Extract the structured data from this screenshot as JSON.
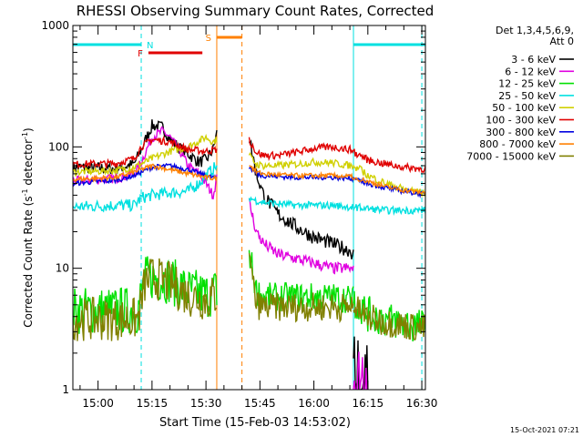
{
  "chart_data": {
    "type": "line",
    "title": "RHESSI Observing Summary Count Rates, Corrected",
    "xlabel": "Start Time (15-Feb-03 14:53:02)",
    "ylabel": "Corrected Count Rate (s⁻¹ detector⁻¹)",
    "ylabel_main": "Corrected Count Rate (s",
    "ylabel_sup1": "-1",
    "ylabel_mid": " detector",
    "ylabel_sup2": "-1",
    "ylabel_end": ")",
    "y_scale": "log",
    "ylim": [
      1,
      1000
    ],
    "xlim": [
      "14:53",
      "16:31"
    ],
    "x_ticks": [
      "15:00",
      "15:15",
      "15:30",
      "15:45",
      "16:00",
      "16:15",
      "16:30"
    ],
    "y_ticks": [
      "1",
      "10",
      "100",
      "1000"
    ],
    "grid": false,
    "legend": {
      "position": "right",
      "header": [
        "Det 1,3,4,5,6,9,",
        "Att 0"
      ],
      "entries": [
        {
          "name": "3 - 6 keV",
          "color": "#000000"
        },
        {
          "name": "6 - 12 keV",
          "color": "#e000e0"
        },
        {
          "name": "12 - 25 keV",
          "color": "#00e000"
        },
        {
          "name": "25 - 50 keV",
          "color": "#00e0e0"
        },
        {
          "name": "50 - 100 keV",
          "color": "#d0d000"
        },
        {
          "name": "100 - 300 keV",
          "color": "#e00000"
        },
        {
          "name": "300 - 800 keV",
          "color": "#0000e0"
        },
        {
          "name": "800 - 7000 keV",
          "color": "#ff8000"
        },
        {
          "name": "7000 - 15000 keV",
          "color": "#808000"
        }
      ]
    },
    "annotations": [
      {
        "label": "N",
        "color": "#00e0e0",
        "segments": [
          [
            "14:53",
            "15:12"
          ],
          [
            "16:11",
            "16:31"
          ]
        ]
      },
      {
        "label": "F",
        "color": "#e00000",
        "segments": [
          [
            "15:14",
            "15:29"
          ]
        ]
      },
      {
        "label": "S",
        "color": "#ff8000",
        "segments": [
          [
            "15:33",
            "15:40"
          ]
        ]
      }
    ],
    "vertical_markers": [
      {
        "time": "15:12",
        "color": "#00e0e0",
        "style": "dashed"
      },
      {
        "time": "16:11",
        "color": "#00e0e0",
        "style": "solid"
      },
      {
        "time": "16:30",
        "color": "#00e0e0",
        "style": "dashed"
      },
      {
        "time": "15:33",
        "color": "#ff8000",
        "style": "solid"
      },
      {
        "time": "15:40",
        "color": "#ff8000",
        "style": "dashed"
      }
    ],
    "series": [
      {
        "name": "3 - 6 keV",
        "color": "#000000",
        "noise": 0.05,
        "x": [
          "14:53",
          "15:00",
          "15:05",
          "15:10",
          "15:12",
          "15:15",
          "15:18",
          "15:20",
          "15:23",
          "15:25",
          "15:28",
          "15:30",
          "15:32",
          "15:33"
        ],
        "values": [
          68,
          67,
          66,
          72,
          95,
          150,
          145,
          115,
          96,
          88,
          75,
          78,
          95,
          130
        ]
      },
      {
        "name": "6 - 12 keV",
        "color": "#e000e0",
        "noise": 0.04,
        "x": [
          "14:53",
          "15:05",
          "15:10",
          "15:12",
          "15:15",
          "15:18",
          "15:20",
          "15:23",
          "15:25",
          "15:28",
          "15:30",
          "15:32",
          "15:33"
        ],
        "values": [
          52,
          55,
          60,
          75,
          120,
          135,
          120,
          90,
          70,
          60,
          50,
          40,
          55
        ]
      },
      {
        "name": "12 - 25 keV",
        "color": "#00e000",
        "noise": 0.2,
        "x": [
          "14:53",
          "15:11",
          "15:12",
          "15:13",
          "15:15",
          "15:20",
          "15:25",
          "15:30",
          "15:33"
        ],
        "values": [
          4.5,
          4.5,
          6,
          8,
          8.5,
          8,
          6.5,
          6,
          6.5
        ]
      },
      {
        "name": "25 - 50 keV",
        "color": "#00e0e0",
        "noise": 0.05,
        "x": [
          "14:53",
          "15:05",
          "15:10",
          "15:12",
          "15:15",
          "15:20",
          "15:25",
          "15:28",
          "15:30",
          "15:33"
        ],
        "values": [
          32,
          33,
          33,
          38,
          40,
          42,
          43,
          50,
          58,
          70
        ]
      },
      {
        "name": "50 - 100 keV",
        "color": "#d0d000",
        "noise": 0.03,
        "x": [
          "14:53",
          "15:05",
          "15:10",
          "15:15",
          "15:20",
          "15:25",
          "15:30",
          "15:32",
          "15:33"
        ],
        "values": [
          62,
          64,
          68,
          80,
          92,
          100,
          120,
          110,
          115
        ]
      },
      {
        "name": "100 - 300 keV",
        "color": "#e00000",
        "noise": 0.03,
        "x": [
          "14:53",
          "15:05",
          "15:10",
          "15:12",
          "15:15",
          "15:20",
          "15:25",
          "15:30",
          "15:33"
        ],
        "values": [
          72,
          73,
          80,
          100,
          115,
          110,
          95,
          92,
          95
        ]
      },
      {
        "name": "300 - 800 keV",
        "color": "#0000e0",
        "noise": 0.02,
        "x": [
          "14:53",
          "15:05",
          "15:10",
          "15:15",
          "15:20",
          "15:25",
          "15:30",
          "15:33"
        ],
        "values": [
          50,
          53,
          58,
          68,
          70,
          65,
          58,
          55
        ]
      },
      {
        "name": "800 - 7000 keV",
        "color": "#ff8000",
        "noise": 0.02,
        "x": [
          "14:53",
          "15:05",
          "15:10",
          "15:15",
          "15:20",
          "15:25",
          "15:30",
          "15:33"
        ],
        "values": [
          54,
          56,
          62,
          70,
          65,
          60,
          56,
          55
        ]
      },
      {
        "name": "7000 - 15000 keV",
        "color": "#808000",
        "noise": 0.18,
        "x": [
          "14:53",
          "15:11",
          "15:12",
          "15:13",
          "15:15",
          "15:20",
          "15:25",
          "15:30",
          "15:33"
        ],
        "values": [
          3.8,
          3.8,
          5,
          7.5,
          8.5,
          7.5,
          6,
          5.5,
          6
        ]
      },
      {
        "name": "3 - 6 keV",
        "color": "#000000",
        "noise": 0.06,
        "x": [
          "15:42",
          "15:44",
          "15:46",
          "15:50",
          "15:55",
          "16:00",
          "16:05",
          "16:10",
          "16:11"
        ],
        "values": [
          120,
          60,
          40,
          28,
          22,
          18,
          16,
          14,
          13
        ]
      },
      {
        "name": "6 - 12 keV",
        "color": "#e000e0",
        "noise": 0.05,
        "x": [
          "15:42",
          "15:44",
          "15:46",
          "15:50",
          "15:55",
          "16:00",
          "16:05",
          "16:10",
          "16:11"
        ],
        "values": [
          35,
          20,
          16,
          13,
          12,
          11,
          10,
          10,
          9.5
        ]
      },
      {
        "name": "12 - 25 keV",
        "color": "#00e000",
        "noise": 0.12,
        "x": [
          "15:42",
          "15:44",
          "15:46",
          "15:50",
          "15:55",
          "16:00",
          "16:05",
          "16:10",
          "16:11"
        ],
        "values": [
          14,
          6.5,
          5.8,
          5.8,
          5.8,
          5.8,
          5.8,
          5.6,
          5.5
        ]
      },
      {
        "name": "25 - 50 keV",
        "color": "#00e0e0",
        "noise": 0.03,
        "x": [
          "15:42",
          "15:44",
          "15:46",
          "15:50",
          "15:55",
          "16:00",
          "16:05",
          "16:10",
          "16:11"
        ],
        "values": [
          38,
          36,
          35,
          34,
          33,
          33,
          33,
          32,
          32
        ]
      },
      {
        "name": "50 - 100 keV",
        "color": "#d0d000",
        "noise": 0.03,
        "x": [
          "15:42",
          "15:44",
          "15:46",
          "15:50",
          "15:55",
          "16:00",
          "16:05",
          "16:10",
          "16:11"
        ],
        "values": [
          85,
          72,
          70,
          70,
          72,
          75,
          74,
          70,
          70
        ]
      },
      {
        "name": "100 - 300 keV",
        "color": "#e00000",
        "noise": 0.03,
        "x": [
          "15:42",
          "15:44",
          "15:46",
          "15:50",
          "15:55",
          "16:00",
          "16:05",
          "16:10",
          "16:11"
        ],
        "values": [
          115,
          90,
          85,
          85,
          90,
          97,
          100,
          95,
          92
        ]
      },
      {
        "name": "300 - 800 keV",
        "color": "#0000e0",
        "noise": 0.02,
        "x": [
          "15:42",
          "15:44",
          "15:46",
          "15:50",
          "15:55",
          "16:00",
          "16:05",
          "16:10",
          "16:11"
        ],
        "values": [
          68,
          60,
          58,
          57,
          56,
          56,
          56,
          55,
          55
        ]
      },
      {
        "name": "800 - 7000 keV",
        "color": "#ff8000",
        "noise": 0.02,
        "x": [
          "15:42",
          "15:44",
          "15:46",
          "15:50",
          "15:55",
          "16:00",
          "16:05",
          "16:10",
          "16:11"
        ],
        "values": [
          72,
          62,
          60,
          59,
          58,
          58,
          58,
          57,
          56
        ]
      },
      {
        "name": "7000 - 15000 keV",
        "color": "#808000",
        "noise": 0.12,
        "x": [
          "15:42",
          "15:44",
          "15:46",
          "15:50",
          "15:55",
          "16:00",
          "16:05",
          "16:10",
          "16:11"
        ],
        "values": [
          12,
          5,
          4.8,
          4.8,
          4.8,
          4.8,
          4.8,
          4.8,
          4.8
        ]
      },
      {
        "name": "3 - 6 keV",
        "color": "#000000",
        "noise": 0.3,
        "x": [
          "16:11",
          "16:12",
          "16:15"
        ],
        "values": [
          1.5,
          1.3,
          1.2
        ]
      },
      {
        "name": "6 - 12 keV",
        "color": "#e000e0",
        "noise": 0.3,
        "x": [
          "16:11",
          "16:12",
          "16:15"
        ],
        "values": [
          1.4,
          1.2,
          1.1
        ]
      },
      {
        "name": "12 - 25 keV",
        "color": "#00e000",
        "noise": 0.15,
        "x": [
          "16:11",
          "16:15",
          "16:20",
          "16:25",
          "16:30",
          "16:31"
        ],
        "values": [
          5.5,
          4.2,
          3.8,
          3.5,
          3.3,
          3.2
        ]
      },
      {
        "name": "25 - 50 keV",
        "color": "#00e0e0",
        "noise": 0.03,
        "x": [
          "16:11",
          "16:15",
          "16:20",
          "16:25",
          "16:30",
          "16:31"
        ],
        "values": [
          32,
          31,
          30,
          30,
          30,
          30
        ]
      },
      {
        "name": "50 - 100 keV",
        "color": "#d0d000",
        "noise": 0.03,
        "x": [
          "16:11",
          "16:13",
          "16:15",
          "16:20",
          "16:25",
          "16:30",
          "16:31"
        ],
        "values": [
          68,
          65,
          58,
          50,
          45,
          42,
          42
        ]
      },
      {
        "name": "100 - 300 keV",
        "color": "#e00000",
        "noise": 0.03,
        "x": [
          "16:11",
          "16:13",
          "16:15",
          "16:20",
          "16:25",
          "16:30",
          "16:31"
        ],
        "values": [
          90,
          85,
          78,
          72,
          68,
          66,
          66
        ]
      },
      {
        "name": "300 - 800 keV",
        "color": "#0000e0",
        "noise": 0.02,
        "x": [
          "16:11",
          "16:13",
          "16:15",
          "16:20",
          "16:25",
          "16:30",
          "16:31"
        ],
        "values": [
          54,
          52,
          50,
          46,
          43,
          41,
          41
        ]
      },
      {
        "name": "800 - 7000 keV",
        "color": "#ff8000",
        "noise": 0.02,
        "x": [
          "16:11",
          "16:13",
          "16:15",
          "16:20",
          "16:25",
          "16:30",
          "16:31"
        ],
        "values": [
          56,
          54,
          52,
          47,
          44,
          42,
          42
        ]
      },
      {
        "name": "7000 - 15000 keV",
        "color": "#808000",
        "noise": 0.12,
        "x": [
          "16:11",
          "16:15",
          "16:20",
          "16:25",
          "16:30",
          "16:31"
        ],
        "values": [
          4.8,
          3.9,
          3.6,
          3.4,
          3.2,
          3.2
        ]
      }
    ]
  },
  "footer": {
    "timestamp": "15-Oct-2021 07:21"
  }
}
